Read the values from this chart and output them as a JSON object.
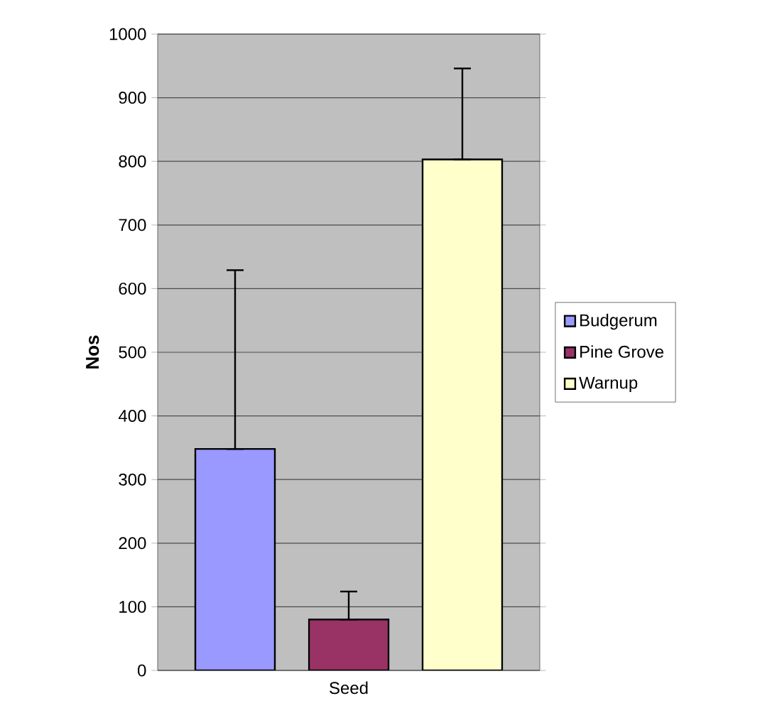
{
  "chart_data": {
    "type": "bar",
    "ylabel": "Nos",
    "categories": [
      "Seed"
    ],
    "series": [
      {
        "name": "Budgerum",
        "color": "#9999ff",
        "values": [
          348
        ],
        "errors": [
          [
            348,
            629
          ]
        ]
      },
      {
        "name": "Pine Grove",
        "color": "#993366",
        "values": [
          80
        ],
        "errors": [
          [
            80,
            124
          ]
        ]
      },
      {
        "name": "Warnup",
        "color": "#ffffcc",
        "values": [
          803
        ],
        "errors": [
          [
            803,
            946
          ]
        ]
      }
    ],
    "ylim": [
      0,
      1000
    ],
    "yticks": [
      0,
      100,
      200,
      300,
      400,
      500,
      600,
      700,
      800,
      900,
      1000
    ],
    "grid": "y",
    "legend": "right"
  }
}
